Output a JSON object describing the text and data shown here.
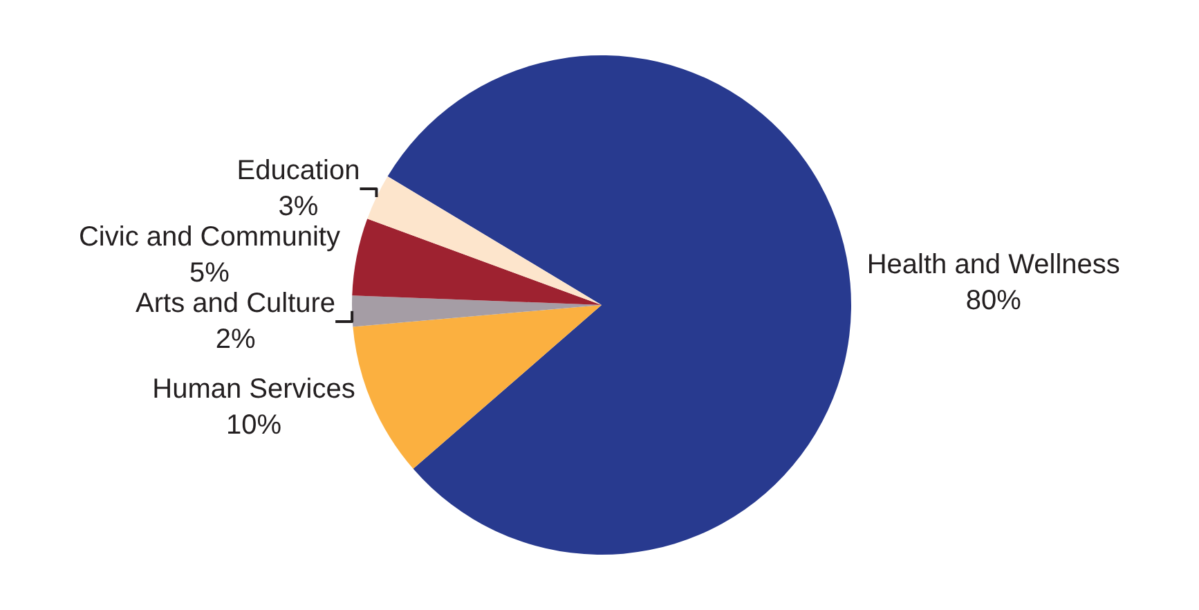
{
  "chart_data": {
    "type": "pie",
    "categories": [
      "Health and Wellness",
      "Human Services",
      "Arts and Culture",
      "Civic and Community",
      "Education"
    ],
    "values": [
      80,
      10,
      2,
      5,
      3
    ],
    "colors": [
      "#283a8f",
      "#fbb040",
      "#a59da5",
      "#9e2230",
      "#fde5cc"
    ],
    "value_labels": [
      "80%",
      "10%",
      "2%",
      "5%",
      "3%"
    ],
    "legend": false
  }
}
